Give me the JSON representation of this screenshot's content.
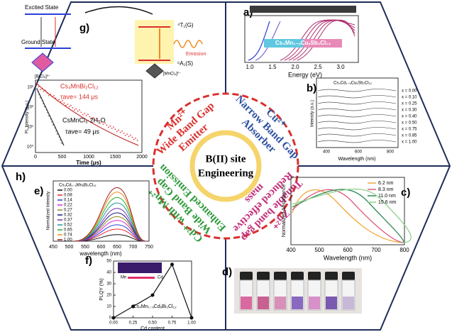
{
  "center": {
    "title": "B(II) site",
    "subtitle": "Engineering"
  },
  "quadrants": {
    "mn": [
      "Mn²⁺",
      "Wide Band Gap",
      "Emitter"
    ],
    "cu": [
      "Cu²⁺",
      "Narrow Band Gap",
      "Absorber"
    ],
    "zn": [
      "Zn²⁺",
      "Tunable band gap",
      "Reduced effective",
      "mass"
    ],
    "cd": [
      "Cd²⁺ with Mn²⁺",
      "Wide Band Gap",
      "Enhanced Emission"
    ]
  },
  "panels": {
    "g": {
      "label": "g)",
      "excited": "Excited State",
      "ground": "Ground State",
      "t1": "⁴T₁(G)",
      "a1": "⁶A₁(S)",
      "emission": "Emission",
      "bicl": "[BiCl₆]³⁻",
      "mncl": "[MnCl₄]²⁻"
    },
    "a": {
      "label": "a)",
      "compound": "Cs₄Mn₁₋ₓCuₓSb₂Cl₁₂",
      "xlabel": "Energy (eV)",
      "xticks": [
        "1.0",
        "1.5",
        "2.0",
        "2.5",
        "3.0"
      ]
    },
    "b": {
      "label": "b)",
      "title": "Cs₄Cd₁₋ₓCuₓSb₂Cl₁₂",
      "ylabel": "Intensity (a.u.)",
      "xlabel": "Wavelength (nm)",
      "xticks": [
        400,
        600,
        800
      ],
      "entries": [
        "x = 0.00",
        "x = 0.10",
        "x = 0.25",
        "x = 0.30",
        "x = 0.40",
        "x = 0.50",
        "x = 0.75",
        "x = 0.85",
        "x = 1.00"
      ]
    },
    "c": {
      "label": "c)",
      "ylabel": "Normalized Absorbance",
      "xlabel": "Wavelength (nm)",
      "xticks": [
        400,
        500,
        600,
        700,
        800
      ],
      "series": [
        {
          "name": "6.2 nm",
          "color": "#f2a93b"
        },
        {
          "name": "8.3 nm",
          "color": "#e05a7a"
        },
        {
          "name": "11.0 nm",
          "color": "#2e8b57"
        },
        {
          "name": "15.6 nm",
          "color": "#8fd18f"
        }
      ]
    },
    "d": {
      "label": "d)"
    },
    "e": {
      "label": "e)",
      "title": "Cs₄Cd₁₋ₓMnₓBi₂Cl₁₂",
      "ylabel": "Normalized Intensity",
      "xlabel": "wavelength (nm)",
      "xticks": [
        450,
        500,
        550,
        600,
        650,
        700,
        750
      ],
      "series": [
        {
          "name": "0.00",
          "color": "#111111"
        },
        {
          "name": "0.08",
          "color": "#e8262a"
        },
        {
          "name": "0.14",
          "color": "#2b3fd6"
        },
        {
          "name": "0.22",
          "color": "#d62bd0"
        },
        {
          "name": "0.27",
          "color": "#8a8a1a"
        },
        {
          "name": "0.32",
          "color": "#1a1a80"
        },
        {
          "name": "0.37",
          "color": "#7a2bb0"
        },
        {
          "name": "0.52",
          "color": "#1a9a9a"
        },
        {
          "name": "0.65",
          "color": "#2bb02b"
        },
        {
          "name": "0.74",
          "color": "#f08a1a"
        },
        {
          "name": "1.00",
          "color": "#a01a1a"
        }
      ]
    },
    "f": {
      "label": "f)",
      "ylabel": "PLQY (%)",
      "xlabel": "Cd content",
      "formula": "Cs₄Mn₁₋ₓCdₓBi₂Cl₁₂",
      "mn": "Mn",
      "cd": "Cd",
      "xlim": [
        0,
        1
      ],
      "ylim": [
        0,
        50
      ],
      "xticks": [
        {
          "value": 0,
          "label": "0.00"
        },
        {
          "value": 0.25,
          "label": "0.25"
        },
        {
          "value": 0.5,
          "label": "0.50"
        },
        {
          "value": 0.75,
          "label": "0.75"
        },
        {
          "value": 1,
          "label": "1.00"
        }
      ],
      "yticks": [
        0,
        10,
        20,
        30,
        40,
        50
      ],
      "x": [
        0,
        0.25,
        0.5,
        0.75,
        1
      ],
      "values": [
        0,
        10,
        20,
        47,
        0
      ]
    },
    "h": {
      "label": "h)",
      "ylabel": "PL Intensity (a.u.)",
      "xlabel": "Time (μs)",
      "xticks": [
        0,
        500,
        1000,
        1500,
        2000
      ],
      "yticks": [
        "10⁰",
        "10¹",
        "10²",
        "10³"
      ],
      "compound1": "Cs₄MnBi₂Cl₁₂",
      "tau1": "τave= 144 μs",
      "compound2": "CsMnCl₃·2H₂O",
      "tau2": "τave= 49 μs"
    }
  }
}
